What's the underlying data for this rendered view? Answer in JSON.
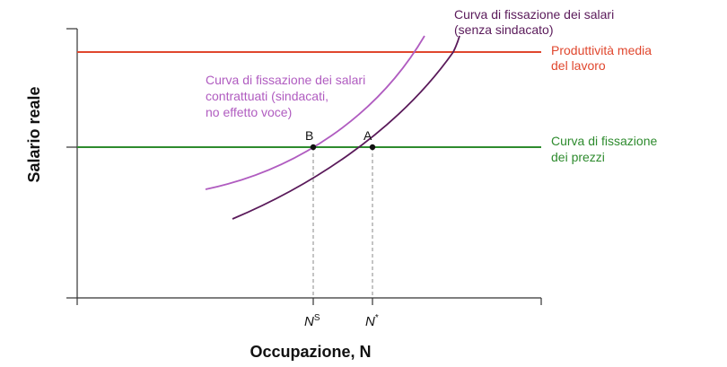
{
  "axes": {
    "x_title": "Occupazione, N",
    "y_title": "Salario reale",
    "x_ticks": [
      {
        "base": "N",
        "sup": "S"
      },
      {
        "base": "N",
        "sup": "*"
      }
    ]
  },
  "lines": {
    "productivity": {
      "label_line1": "Produttività media",
      "label_line2": "del lavoro",
      "color": "#e0472e"
    },
    "price_setting": {
      "label_line1": "Curva di fissazione",
      "label_line2": "dei prezzi",
      "color": "#2e8b2e"
    },
    "wage_setting": {
      "label_line1": "Curva di fissazione dei salari",
      "label_line2": "(senza sindacato)",
      "color": "#5a1a5a"
    },
    "union_wage_setting": {
      "label_line1": "Curva di fissazione dei salari",
      "label_line2": "contrattuati (sindacati,",
      "label_line3": "no effetto voce)",
      "color": "#b05cc0"
    }
  },
  "points": {
    "A": "A",
    "B": "B"
  },
  "colors": {
    "axis": "#333333",
    "dashed": "#888888"
  }
}
